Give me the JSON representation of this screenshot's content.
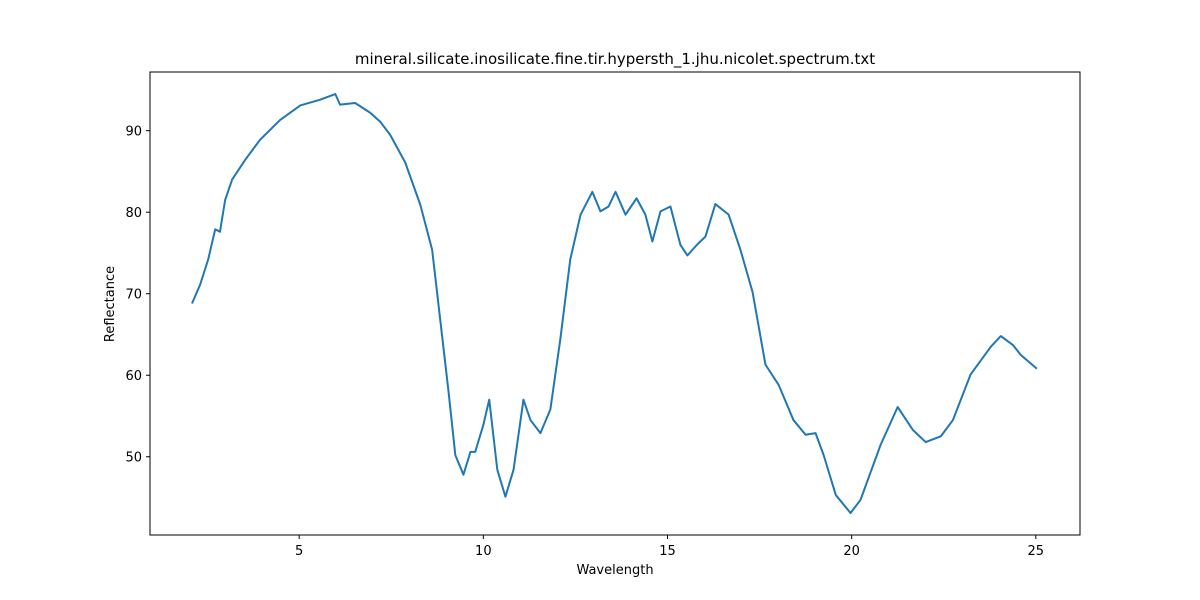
{
  "chart_data": {
    "type": "line",
    "title": "mineral.silicate.inosilicate.fine.tir.hypersth_1.jhu.nicolet.spectrum.txt",
    "x_label": "Wavelength",
    "y_label": "Reflectance",
    "color": "#1f77b4",
    "x": [
      2.09,
      2.31,
      2.53,
      2.72,
      2.85,
      2.99,
      3.18,
      3.53,
      3.94,
      4.48,
      5.03,
      5.57,
      5.98,
      6.11,
      6.52,
      6.93,
      7.2,
      7.47,
      7.88,
      8.29,
      8.61,
      8.83,
      9.05,
      9.24,
      9.46,
      9.65,
      9.78,
      10.0,
      10.16,
      10.38,
      10.6,
      10.82,
      11.09,
      11.28,
      11.55,
      11.82,
      12.09,
      12.36,
      12.64,
      12.96,
      13.18,
      13.4,
      13.59,
      13.86,
      14.16,
      14.4,
      14.59,
      14.81,
      15.08,
      15.35,
      15.54,
      15.82,
      16.03,
      16.3,
      16.66,
      16.98,
      17.31,
      17.66,
      18.02,
      18.42,
      18.75,
      19.02,
      19.24,
      19.57,
      19.97,
      20.24,
      20.79,
      21.25,
      21.66,
      22.01,
      22.42,
      22.75,
      23.23,
      23.78,
      24.05,
      24.38,
      24.59,
      25.03
    ],
    "values": [
      68.8,
      71.1,
      74.2,
      77.9,
      77.6,
      81.5,
      84.0,
      86.4,
      88.9,
      91.3,
      93.1,
      93.8,
      94.5,
      93.2,
      93.4,
      92.2,
      91.1,
      89.5,
      86.1,
      80.9,
      75.4,
      66.8,
      58.2,
      50.2,
      47.8,
      50.6,
      50.6,
      53.9,
      57.0,
      48.4,
      45.1,
      48.4,
      57.0,
      54.5,
      52.9,
      55.8,
      64.4,
      74.2,
      79.7,
      82.5,
      80.1,
      80.7,
      82.5,
      79.7,
      81.7,
      79.7,
      76.4,
      80.1,
      80.7,
      76.0,
      74.7,
      76.1,
      77.0,
      81.0,
      79.7,
      75.4,
      70.2,
      61.3,
      58.8,
      54.5,
      52.7,
      52.9,
      50.2,
      45.3,
      43.1,
      44.7,
      51.5,
      56.1,
      53.3,
      51.8,
      52.5,
      54.5,
      60.1,
      63.5,
      64.8,
      63.7,
      62.5,
      60.8
    ],
    "xlim": [
      0.95,
      26.2
    ],
    "ylim": [
      40.4,
      97.2
    ],
    "xticks": [
      5,
      10,
      15,
      20,
      25
    ],
    "yticks": [
      50,
      60,
      70,
      80,
      90
    ]
  }
}
